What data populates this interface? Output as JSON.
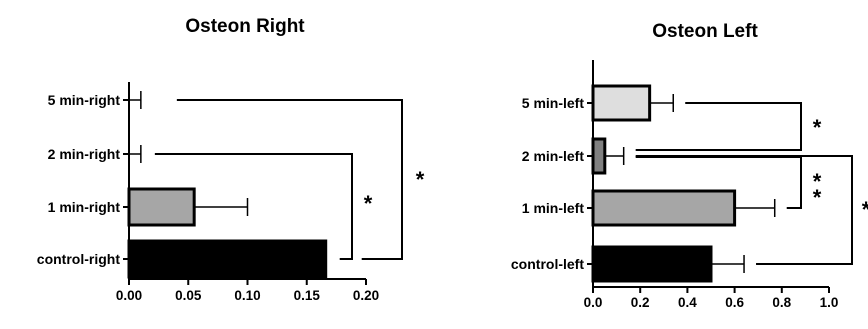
{
  "chart_data": [
    {
      "type": "bar",
      "orientation": "horizontal",
      "title": "Osteon Right",
      "categories": [
        "5 min-right",
        "2 min-right",
        "1 min-right",
        "control-right"
      ],
      "values": [
        0,
        0,
        0.055,
        0.166
      ],
      "errors": [
        0.01,
        0.01,
        0.045,
        0
      ],
      "colors": [
        "#ffffff",
        "#ffffff",
        "#a6a6a6",
        "#000000"
      ],
      "xlim": [
        0,
        0.2
      ],
      "xticks": [
        "0.00",
        "0.05",
        "0.10",
        "0.15",
        "0.20"
      ],
      "significance": [
        {
          "from": "2 min-right",
          "to": "control-right",
          "label": "*"
        },
        {
          "from": "5 min-right",
          "to": "control-right",
          "label": "*"
        }
      ]
    },
    {
      "type": "bar",
      "orientation": "horizontal",
      "title": "Osteon Left",
      "categories": [
        "5 min-left",
        "2 min-left",
        "1 min-left",
        "control-left"
      ],
      "values": [
        0.24,
        0.05,
        0.6,
        0.5
      ],
      "errors": [
        0.1,
        0.08,
        0.17,
        0.14
      ],
      "colors": [
        "#dedede",
        "#808080",
        "#a6a6a6",
        "#000000"
      ],
      "xlim": [
        0,
        1.0
      ],
      "xticks": [
        "0.0",
        "0.2",
        "0.4",
        "0.6",
        "0.8",
        "1.0"
      ],
      "significance": [
        {
          "from": "5 min-left",
          "to": "2 min-left",
          "label": "*"
        },
        {
          "from": "2 min-left",
          "to": "1 min-left",
          "label": "**"
        },
        {
          "from": "2 min-left",
          "to": "control-left",
          "label": "*"
        }
      ]
    }
  ]
}
